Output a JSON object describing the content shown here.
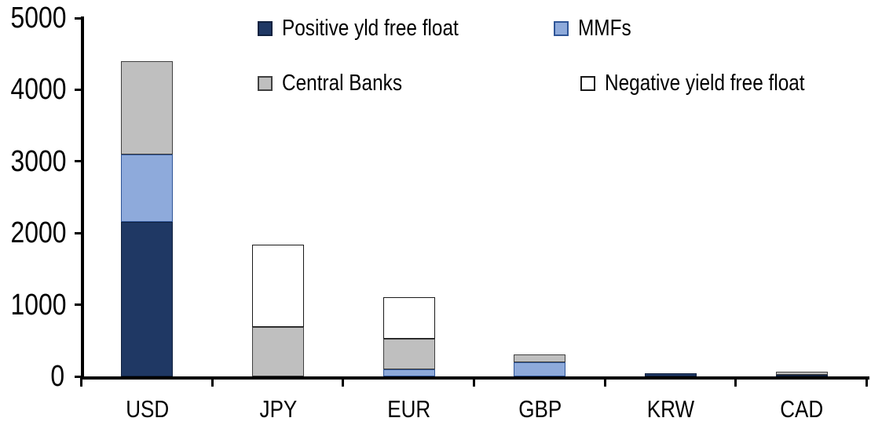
{
  "chart_data": {
    "type": "bar",
    "stacked": true,
    "title": "",
    "categories": [
      "USD",
      "JPY",
      "EUR",
      "GBP",
      "KRW",
      "CAD"
    ],
    "series": [
      {
        "name": "Positive yld free float",
        "color": "#1f3864",
        "border_color": "#10213f",
        "values": [
          2150,
          0,
          0,
          0,
          40,
          25
        ]
      },
      {
        "name": "MMFs",
        "color": "#8eaadb",
        "border_color": "#2f5597",
        "values": [
          950,
          0,
          100,
          200,
          0,
          0
        ]
      },
      {
        "name": "Central Banks",
        "color": "#bfbfbf",
        "border_color": "#404040",
        "values": [
          1300,
          690,
          430,
          110,
          0,
          45
        ]
      },
      {
        "name": "Negative yield free float",
        "color": "#ffffff",
        "border_color": "#1a1a1a",
        "values": [
          0,
          1150,
          580,
          0,
          0,
          0
        ]
      }
    ],
    "ylim": [
      0,
      5000
    ],
    "yticks": [
      0,
      1000,
      2000,
      3000,
      4000,
      5000
    ],
    "xlabel": "",
    "ylabel": "",
    "legend_position": "top",
    "grid": false,
    "axis_color": "#000000",
    "background": "#ffffff"
  }
}
